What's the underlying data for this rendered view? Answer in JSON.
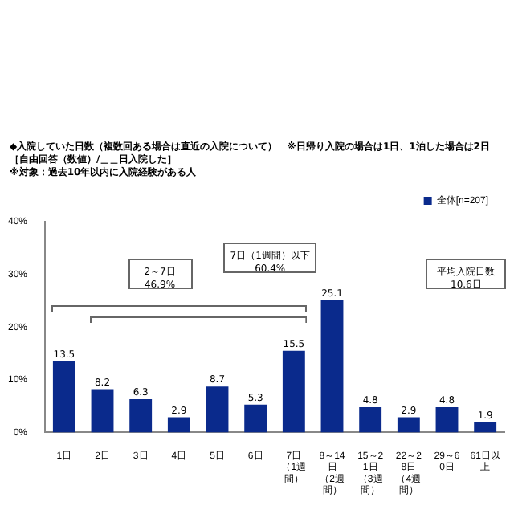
{
  "chart_data": {
    "type": "bar",
    "title": "◆入院していた日数（複数回ある場合は直近の入院について）　※日帰り入院の場合は1日、1泊した場合は2日",
    "subtitle": "［自由回答（数値）/＿＿日入院した］",
    "annotations": [
      "※対象：過去10年以内に入院経験がある人",
      "2～7日\n46.9%",
      "7日（1週間）以下\n60.4%",
      "平均入院日数\n10.6日"
    ],
    "categories": [
      "1日",
      "2日",
      "3日",
      "4日",
      "5日",
      "6日",
      "7日（1週間）",
      "8～14日（2週間）",
      "15～21日（3週間）",
      "22～28日（4週間）",
      "29～60日",
      "61日以上"
    ],
    "series": [
      {
        "name": "全体[n=207]",
        "color": "#0a2a8c",
        "values": [
          13.5,
          8.2,
          6.3,
          2.9,
          8.7,
          5.3,
          15.5,
          25.1,
          4.8,
          2.9,
          4.8,
          1.9
        ]
      }
    ],
    "ylim": [
      0,
      40
    ],
    "yticks": [
      {
        "value": 0,
        "label": "0%"
      },
      {
        "value": 10,
        "label": "10%"
      },
      {
        "value": 20,
        "label": "20%"
      },
      {
        "value": 30,
        "label": "30%"
      },
      {
        "value": 40,
        "label": "40%"
      }
    ],
    "data_labels": true,
    "legend": "top right",
    "grid": false
  }
}
